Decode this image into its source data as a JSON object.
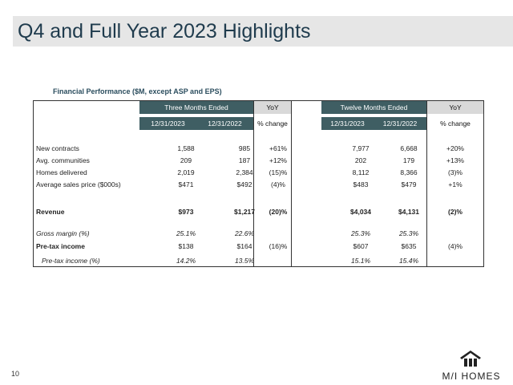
{
  "slide": {
    "title": "Q4 and Full Year 2023 Highlights",
    "page_number": "10"
  },
  "table": {
    "caption": "Financial Performance ($M, except ASP and EPS)",
    "headers": {
      "three_months": "Three Months Ended",
      "twelve_months": "Twelve Months Ended",
      "yoy": "YoY",
      "d2023": "12/31/2023",
      "d2022": "12/31/2022",
      "pct_change": "% change"
    },
    "rows": [
      {
        "label": "New contracts",
        "q23": "1,588",
        "q22": "985",
        "qyoy": "+61%",
        "y23": "7,977",
        "y22": "6,668",
        "yyoy": "+20%"
      },
      {
        "label": "Avg. communities",
        "q23": "209",
        "q22": "187",
        "qyoy": "+12%",
        "y23": "202",
        "y22": "179",
        "yyoy": "+13%"
      },
      {
        "label": "Homes delivered",
        "q23": "2,019",
        "q22": "2,384",
        "qyoy": "(15)%",
        "y23": "8,112",
        "y22": "8,366",
        "yyoy": "(3)%"
      },
      {
        "label": "Average sales price ($000s)",
        "q23": "$471",
        "q22": "$492",
        "qyoy": "(4)%",
        "y23": "$483",
        "y22": "$479",
        "yyoy": "+1%"
      },
      {
        "label": "Revenue",
        "q23": "$973",
        "q22": "$1,217",
        "qyoy": "(20)%",
        "y23": "$4,034",
        "y22": "$4,131",
        "yyoy": "(2)%"
      },
      {
        "label": "Gross margin (%)",
        "q23": "25.1%",
        "q22": "22.6%",
        "qyoy": "",
        "y23": "25.3%",
        "y22": "25.3%",
        "yyoy": ""
      },
      {
        "label": "Pre-tax income",
        "q23": "$138",
        "q22": "$164",
        "qyoy": "(16)%",
        "y23": "$607",
        "y22": "$635",
        "yyoy": "(4)%"
      },
      {
        "label": "Pre-tax income (%)",
        "q23": "14.2%",
        "q22": "13.5%",
        "qyoy": "",
        "y23": "15.1%",
        "y22": "15.4%",
        "yyoy": ""
      }
    ]
  },
  "logo": {
    "text": "M/I HOMES",
    "icon": "house-icon"
  },
  "colors": {
    "header_teal": "#3f5e63",
    "header_gray": "#d9d9d9",
    "title_bar": "#e6e6e6",
    "title_text": "#1f3b4d"
  }
}
